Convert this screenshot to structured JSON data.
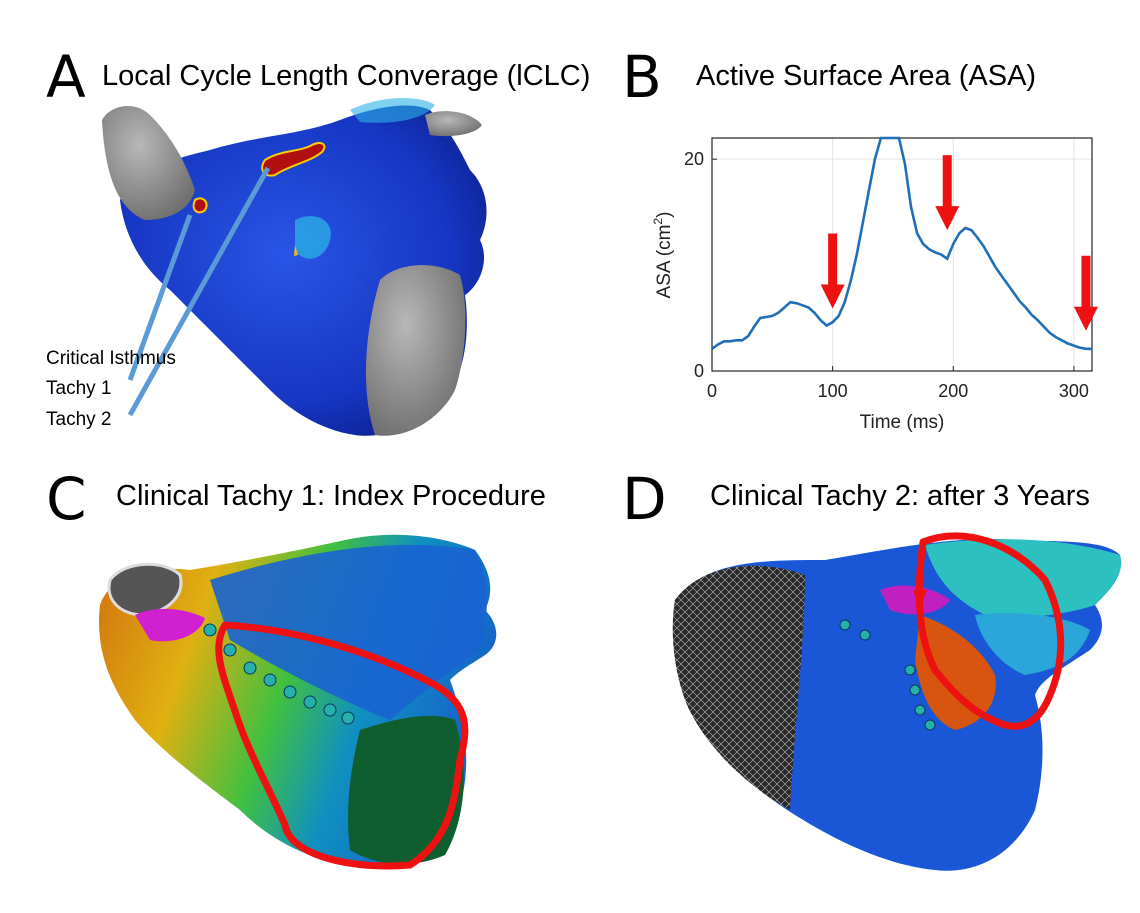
{
  "panels": {
    "a": {
      "letter": "A",
      "title": "Local Cycle Length Converage (lCLC)",
      "labels": {
        "line1": "Critical Isthmus",
        "line2": "Tachy 1",
        "line3": "Tachy 2"
      }
    },
    "b": {
      "letter": "B",
      "title": "Active Surface Area (ASA)"
    },
    "c": {
      "letter": "C",
      "title": "Clinical Tachy 1: Index Procedure"
    },
    "d": {
      "letter": "D",
      "title": "Clinical Tachy 2: after 3 Years"
    }
  },
  "colors": {
    "tissue_blue": "#1237c8",
    "hot_red": "#b01010",
    "grey_cap": "#8e8e8e",
    "curve": "#1f6fb8",
    "arrow_red": "#ee1111",
    "pointer_blue": "#5b9bd5",
    "outline_red": "#ee1111"
  },
  "chart_data": {
    "type": "line",
    "xlabel": "Time (ms)",
    "ylabel": "ASA (cm",
    "ylabel_sup": "2",
    "ylabel_close": ")",
    "xlim": [
      0,
      315
    ],
    "ylim": [
      0,
      22
    ],
    "xticks": [
      0,
      100,
      200,
      300
    ],
    "yticks": [
      0,
      20
    ],
    "grid": true,
    "x": [
      0,
      5,
      10,
      15,
      20,
      25,
      30,
      35,
      40,
      45,
      50,
      55,
      60,
      65,
      70,
      75,
      80,
      85,
      90,
      95,
      100,
      105,
      110,
      115,
      120,
      125,
      130,
      135,
      140,
      145,
      150,
      155,
      160,
      165,
      170,
      175,
      180,
      185,
      190,
      195,
      200,
      205,
      210,
      215,
      220,
      225,
      230,
      235,
      240,
      245,
      250,
      255,
      260,
      265,
      270,
      275,
      280,
      285,
      290,
      295,
      300,
      305,
      310,
      315
    ],
    "values": [
      2.1,
      2.5,
      2.8,
      2.8,
      2.9,
      2.9,
      3.3,
      4.2,
      5.0,
      5.1,
      5.2,
      5.5,
      6.0,
      6.5,
      6.4,
      6.2,
      6.0,
      5.5,
      4.8,
      4.3,
      4.6,
      5.2,
      6.5,
      8.5,
      11.0,
      14.0,
      17.0,
      20.0,
      22.0,
      22.8,
      22.8,
      22.3,
      19.5,
      15.5,
      13.0,
      12.0,
      11.5,
      11.2,
      11.0,
      10.6,
      12.0,
      13.0,
      13.5,
      13.3,
      12.6,
      11.8,
      10.8,
      9.8,
      9.0,
      8.2,
      7.4,
      6.6,
      6.0,
      5.3,
      4.8,
      4.2,
      3.6,
      3.2,
      2.9,
      2.6,
      2.4,
      2.2,
      2.1,
      2.1
    ],
    "arrows_x": [
      100,
      195,
      310
    ],
    "arrows_tip_y": [
      5.9,
      13.3,
      3.8
    ]
  }
}
